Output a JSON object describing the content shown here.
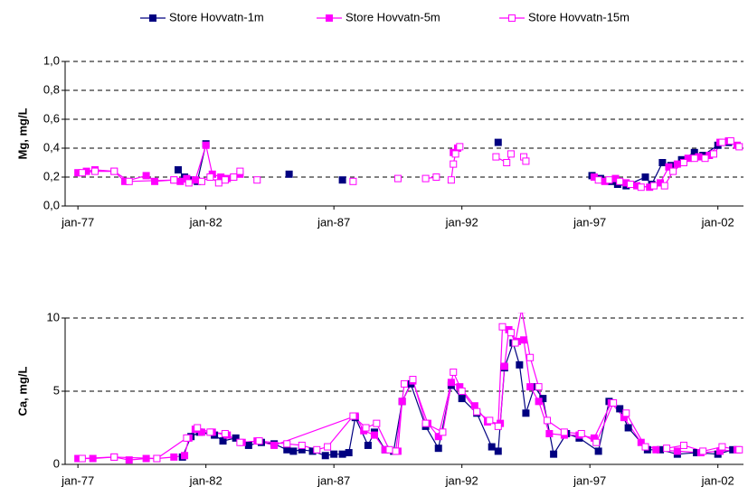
{
  "chart_data": [
    {
      "type": "line",
      "y_label": "Mg, mg/L",
      "xlim": [
        "1976-07",
        "2003-01"
      ],
      "xticks": [
        {
          "value": "1977-01",
          "label": "jan-77"
        },
        {
          "value": "1982-01",
          "label": "jan-82"
        },
        {
          "value": "1987-01",
          "label": "jan-87"
        },
        {
          "value": "1992-01",
          "label": "jan-92"
        },
        {
          "value": "1997-01",
          "label": "jan-97"
        },
        {
          "value": "2002-01",
          "label": "jan-02"
        }
      ],
      "ylim": [
        0,
        1
      ],
      "yticks": [
        {
          "value": 0,
          "label": "0,0"
        },
        {
          "value": 0.2,
          "label": "0,2"
        },
        {
          "value": 0.4,
          "label": "0,4"
        },
        {
          "value": 0.6,
          "label": "0,6"
        },
        {
          "value": 0.8,
          "label": "0,8"
        },
        {
          "value": 1,
          "label": "1,0"
        }
      ],
      "grid": true,
      "series": [
        {
          "name": "Store Hovvatn-1m",
          "color": "#000080",
          "marker_fill": "#000080",
          "x": [
            "1980-12",
            "1981-03",
            "1981-06",
            "1981-09",
            "1982-01",
            null,
            "1985-04",
            null,
            "1987-05",
            null,
            "1993-06",
            null,
            "1997-02",
            "1997-06",
            "1997-11",
            "1998-02",
            "1998-06",
            "1999-03",
            "1999-06",
            "1999-11",
            "2000-03",
            "2000-08",
            "2001-02",
            "2001-06",
            "2002-01",
            "2002-06"
          ],
          "values": [
            0.25,
            0.2,
            0.18,
            0.17,
            0.43,
            null,
            0.22,
            null,
            0.18,
            null,
            0.44,
            null,
            0.21,
            0.19,
            0.17,
            0.15,
            0.14,
            0.2,
            0.15,
            0.3,
            0.28,
            0.32,
            0.37,
            0.35,
            0.42,
            0.44
          ]
        },
        {
          "name": "Store Hovvatn-5m",
          "color": "#ff00ff",
          "marker_fill": "#ff00ff",
          "x": [
            "1977-01",
            "1977-05",
            "1977-09",
            "1978-06",
            "1978-11",
            "1979-09",
            "1980-01",
            "1980-10",
            "1981-01",
            "1981-04",
            "1981-08",
            "1982-01",
            "1982-04",
            "1982-08",
            "1982-11",
            "1983-02",
            "1983-05",
            null,
            "1991-09",
            "1991-11",
            null,
            "1997-03",
            "1997-08",
            "1998-01",
            "1998-06",
            "1998-11",
            "1999-05",
            "1999-10",
            "2000-02",
            "2000-06",
            "2000-11",
            "2001-04",
            "2001-09",
            "2002-02",
            "2002-06",
            "2002-10"
          ],
          "values": [
            0.23,
            0.24,
            0.25,
            0.24,
            0.17,
            0.21,
            0.17,
            0.18,
            0.17,
            0.19,
            0.18,
            0.42,
            0.22,
            0.2,
            0.19,
            0.2,
            0.22,
            null,
            0.37,
            0.4,
            null,
            0.2,
            0.17,
            0.19,
            0.16,
            0.14,
            0.13,
            0.16,
            0.27,
            0.29,
            0.33,
            0.34,
            0.35,
            0.44,
            0.45,
            0.42
          ]
        },
        {
          "name": "Store Hovvatn-15m",
          "color": "#ff00ff",
          "marker_fill": "#ffffff",
          "x": [
            "1977-03",
            "1977-09",
            "1978-06",
            "1979-01",
            "1980-10",
            "1981-05",
            "1981-11",
            "1982-03",
            "1982-07",
            "1982-10",
            "1983-02",
            "1983-05",
            null,
            "1984-01",
            null,
            "1987-10",
            null,
            "1989-07",
            null,
            "1990-08",
            "1991-01",
            null,
            "1991-08",
            "1991-09",
            "1991-10",
            "1991-12",
            null,
            "1993-05",
            "1993-10",
            "1993-12",
            null,
            "1994-06",
            "1994-07",
            null,
            "1997-05",
            "1997-10",
            "1998-03",
            "1998-08",
            "1999-01",
            "1999-07",
            "1999-12",
            "2000-04",
            "2000-09",
            "2001-02",
            "2001-07",
            "2001-11",
            "2002-03",
            "2002-07",
            "2002-11"
          ],
          "values": [
            0.23,
            0.24,
            0.24,
            0.17,
            0.18,
            0.16,
            0.17,
            0.2,
            0.16,
            0.18,
            0.2,
            0.24,
            null,
            0.18,
            null,
            0.17,
            null,
            0.19,
            null,
            0.19,
            0.2,
            null,
            0.18,
            0.29,
            0.36,
            0.41,
            null,
            0.34,
            0.3,
            0.36,
            null,
            0.34,
            0.31,
            null,
            0.18,
            0.18,
            0.17,
            0.15,
            0.13,
            0.14,
            0.14,
            0.24,
            0.3,
            0.33,
            0.33,
            0.36,
            0.44,
            0.45,
            0.41
          ]
        }
      ]
    },
    {
      "type": "line",
      "y_label": "Ca, mg/L",
      "xlim": [
        "1976-07",
        "2003-01"
      ],
      "xticks": [
        {
          "value": "1977-01",
          "label": "jan-77"
        },
        {
          "value": "1982-01",
          "label": "jan-82"
        },
        {
          "value": "1987-01",
          "label": "jan-87"
        },
        {
          "value": "1992-01",
          "label": "jan-92"
        },
        {
          "value": "1997-01",
          "label": "jan-97"
        },
        {
          "value": "2002-01",
          "label": "jan-02"
        }
      ],
      "ylim": [
        0,
        10
      ],
      "yticks": [
        0,
        5,
        10
      ],
      "grid": true,
      "series": [
        {
          "color": "#000080",
          "marker_fill": "#000080",
          "x": [
            "1981-02",
            "1981-06",
            "1981-10",
            "1982-05",
            "1982-09",
            "1983-03",
            "1983-09",
            "1984-03",
            "1984-09",
            "1985-03",
            "1985-06",
            "1985-10",
            "1986-03",
            "1986-09",
            "1987-01",
            "1987-05",
            "1987-08",
            "1987-11",
            "1988-05",
            "1988-08",
            "1989-01",
            "1989-05",
            "1989-09",
            "1990-01",
            "1990-08",
            "1991-02",
            "1991-08",
            "1992-01",
            "1992-08",
            "1993-03",
            "1993-06",
            "1993-09",
            "1994-01",
            "1994-04",
            "1994-07",
            "1994-11",
            "1995-03",
            "1995-08",
            "1996-02",
            "1996-08",
            "1997-05",
            "1997-10",
            "1998-03",
            "1998-07",
            "1999-04",
            "1999-10",
            "2000-06",
            "2001-03",
            "2002-01",
            "2002-08"
          ],
          "values": [
            0.5,
            1.9,
            2.2,
            2.0,
            1.6,
            1.8,
            1.3,
            1.5,
            1.4,
            1.0,
            0.9,
            1.0,
            0.9,
            0.6,
            0.7,
            0.7,
            0.8,
            3.2,
            1.3,
            2.2,
            1.0,
            0.9,
            4.3,
            5.5,
            2.6,
            1.1,
            5.4,
            4.5,
            3.5,
            1.2,
            0.9,
            6.6,
            8.3,
            6.8,
            3.5,
            5.3,
            4.5,
            0.7,
            2.1,
            1.8,
            0.9,
            4.3,
            3.8,
            2.5,
            1.0,
            1.0,
            0.7,
            0.8,
            0.7,
            1.0
          ]
        },
        {
          "color": "#ff00ff",
          "marker_fill": "#ff00ff",
          "x": [
            "1977-01",
            "1977-08",
            "1978-06",
            "1979-01",
            "1979-09",
            "1980-02",
            "1980-10",
            "1981-03",
            "1981-05",
            "1981-08",
            "1981-11",
            "1982-04",
            "1982-11",
            "1983-06",
            "1984-01",
            "1984-09",
            "1987-11",
            "1988-03",
            "1988-08",
            "1989-01",
            "1989-07",
            "1989-09",
            "1990-02",
            "1990-09",
            "1991-02",
            "1991-08",
            "1991-12",
            "1992-07",
            "1993-01",
            "1993-07",
            "1993-09",
            "1993-11",
            "1994-03",
            "1994-06",
            "1994-09",
            "1995-01",
            "1995-06",
            "1996-01",
            "1996-08",
            "1997-03",
            "1997-11",
            "1998-05",
            "1999-01",
            "1999-08",
            "2000-06",
            "2001-05",
            "2002-02",
            "2002-10"
          ],
          "values": [
            0.4,
            0.4,
            0.5,
            0.3,
            0.4,
            0.4,
            0.5,
            0.6,
            1.8,
            2.4,
            2.2,
            2.2,
            2.0,
            1.5,
            1.6,
            1.3,
            3.3,
            2.3,
            2.0,
            1.0,
            0.9,
            4.3,
            5.7,
            2.8,
            1.9,
            5.6,
            5.3,
            4.0,
            2.9,
            2.8,
            6.7,
            9.2,
            8.4,
            8.5,
            5.3,
            4.3,
            2.1,
            2.0,
            2.0,
            1.8,
            4.2,
            3.2,
            1.5,
            1.0,
            0.9,
            0.8,
            0.9,
            1.0
          ]
        },
        {
          "color": "#ff00ff",
          "marker_fill": "#ffffff",
          "x": [
            "1977-03",
            "1978-06",
            "1980-02",
            "1981-04",
            "1981-09",
            "1982-03",
            "1982-10",
            "1983-05",
            "1984-02",
            "1985-03",
            "1985-10",
            "1986-05",
            "1986-10",
            "1987-10",
            "1988-04",
            "1988-09",
            "1989-03",
            "1989-06",
            "1989-10",
            "1990-02",
            "1990-08",
            "1991-04",
            "1991-09",
            "1992-01",
            "1992-08",
            "1993-02",
            "1993-06",
            "1993-08",
            "1993-12",
            "1994-02",
            "1994-05",
            "1994-09",
            "1995-01",
            "1995-05",
            "1996-01",
            "1996-09",
            "1997-04",
            "1997-12",
            "1998-06",
            "1999-03",
            "2000-01",
            "2000-09",
            "2001-06",
            "2002-03",
            "2002-11"
          ],
          "values": [
            0.4,
            0.5,
            0.4,
            1.8,
            2.5,
            2.2,
            2.1,
            1.5,
            1.6,
            1.4,
            1.3,
            1.0,
            1.2,
            3.3,
            2.5,
            2.8,
            1.0,
            0.9,
            5.5,
            5.8,
            2.8,
            2.2,
            6.3,
            5.0,
            3.6,
            3.0,
            2.6,
            9.4,
            9.0,
            8.3,
            10.6,
            7.3,
            5.3,
            3.0,
            2.2,
            2.1,
            1.5,
            4.2,
            3.5,
            1.2,
            1.1,
            1.3,
            0.9,
            1.2,
            1.0
          ]
        }
      ]
    }
  ]
}
